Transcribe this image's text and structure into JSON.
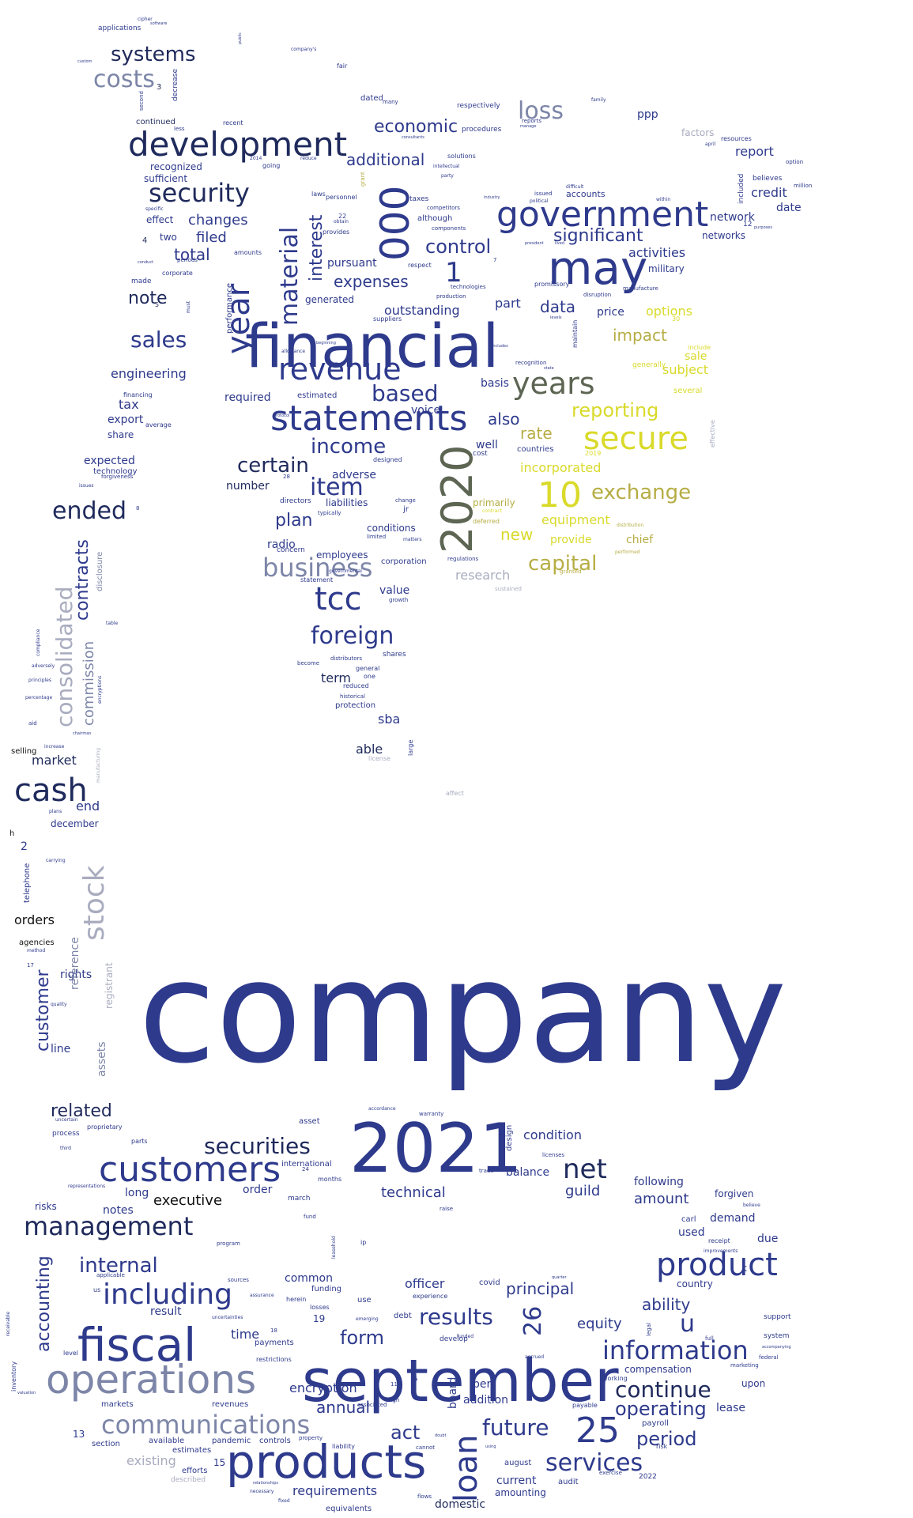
{
  "words": {
    "company": "company",
    "financial": "financial",
    "y2021": "2021",
    "september": "september",
    "government": "government",
    "may": "may",
    "development": "development",
    "statements": "statements",
    "products": "products",
    "operations": "operations",
    "fiscal": "fiscal",
    "customers": "customers",
    "product": "product",
    "revenue": "revenue",
    "y2020": "2020",
    "n000": "000",
    "year": "year",
    "years": "years",
    "secure": "secure",
    "tcc": "tcc",
    "cash": "cash",
    "stock": "stock",
    "loan": "loan",
    "including": "including",
    "management": "management",
    "communications": "communications",
    "information": "information",
    "results": "results",
    "securities": "securities",
    "business": "business",
    "foreign": "foreign",
    "security": "security",
    "sales": "sales",
    "material": "material",
    "consolidated": "consolidated",
    "ended": "ended",
    "costs": "costs",
    "systems": "systems",
    "loss": "loss",
    "n10": "10",
    "n25": "25",
    "n26": "26",
    "exchange": "exchange",
    "reporting": "reporting",
    "capital": "capital",
    "item": "item",
    "based": "based",
    "income": "income",
    "certain": "certain",
    "net": "net",
    "internal": "internal",
    "future": "future",
    "services": "services",
    "continue": "continue",
    "operating": "operating",
    "period": "period",
    "economic": "economic",
    "significant": "significant",
    "control": "control",
    "expenses": "expenses",
    "additional": "additional",
    "interest": "interest",
    "note": "note",
    "total": "total",
    "changes": "changes",
    "filed": "filed",
    "u": "u",
    "form": "form",
    "principal": "principal",
    "act": "act",
    "annual": "annual",
    "accounting": "accounting",
    "customer": "customer",
    "contracts": "contracts",
    "commission": "commission",
    "plan": "plan",
    "impact": "impact",
    "data": "data",
    "also": "also",
    "rate": "rate",
    "new": "new",
    "equipment": "equipment",
    "incorporated": "incorporated",
    "outstanding": "outstanding",
    "options": "options",
    "activities": "activities",
    "related": "related",
    "executive": "executive",
    "equity": "equity",
    "ability": "ability",
    "amount": "amount",
    "technical": "technical",
    "condition": "condition",
    "market": "market",
    "engineering": "engineering",
    "n1": "1",
    "sba": "sba",
    "term": "term",
    "existing": "existing",
    "requirements": "requirements",
    "officer": "officer",
    "guild": "guild",
    "encryption": "encryption",
    "time": "time",
    "notes": "notes",
    "order": "order",
    "long": "long",
    "common": "common",
    "addition": "addition",
    "current": "current",
    "end": "end",
    "december": "december",
    "orders": "orders",
    "rights": "rights",
    "line": "line",
    "assets": "assets",
    "reference": "reference",
    "registrant": "registrant",
    "telephone": "telephone",
    "agencies": "agencies",
    "tax": "tax",
    "export": "export",
    "share": "share",
    "expected": "expected",
    "technology": "technology",
    "required": "required",
    "estimated": "estimated",
    "able": "able",
    "value": "value",
    "radio": "radio",
    "adverse": "adverse",
    "liabilities": "liabilities",
    "conditions": "conditions",
    "employees": "employees",
    "chief": "chief",
    "provide": "provide",
    "primarily": "primarily",
    "research": "research",
    "subject": "subject",
    "sale": "sale",
    "price": "price",
    "part": "part",
    "basis": "basis",
    "well": "well",
    "network": "network",
    "networks": "networks",
    "report": "report",
    "credit": "credit",
    "date": "date",
    "military": "military",
    "ppp": "ppp",
    "factors": "factors",
    "recognized": "recognized",
    "sufficient": "sufficient",
    "effect": "effect",
    "two": "two",
    "pursuant": "pursuant",
    "generated": "generated",
    "voice": "voice",
    "number": "number",
    "international": "international",
    "balance": "balance",
    "following": "following",
    "forgiven": "forgiven",
    "demand": "demand",
    "used": "used",
    "due": "due",
    "country": "country",
    "compensation": "compensation",
    "upon": "upon",
    "lease": "lease",
    "payroll": "payroll",
    "august": "august",
    "audit": "audit",
    "domestic": "domestic",
    "amounting": "amounting",
    "per": "per",
    "board": "board",
    "result": "result",
    "payments": "payments",
    "markets": "markets",
    "revenues": "revenues",
    "pandemic": "pandemic",
    "controls": "controls",
    "efforts": "efforts",
    "estimates": "estimates",
    "section": "section",
    "available": "available",
    "n13": "13",
    "n19": "19",
    "n15": "15",
    "n2": "2",
    "risks": "risks",
    "level": "level",
    "inventory": "inventory",
    "selling": "selling",
    "h": "h",
    "asset": "asset",
    "design": "design",
    "continued": "continued",
    "applications": "applications",
    "decrease": "decrease",
    "dated": "dated",
    "respectively": "respectively",
    "protection": "protection",
    "foreign_small": "distributors",
    "equivalents": "equivalents",
    "covid": "covid",
    "funding": "funding",
    "debt": "debt",
    "k": "k",
    "system": "system",
    "support": "support",
    "financing": "financing",
    "forgiveness": "forgiveness",
    "issues": "issues",
    "average": "average",
    "disclosure": "disclosure",
    "corporation": "corporation",
    "statement": "statement",
    "concern": "concern",
    "directors": "directors",
    "shares": "shares",
    "general": "general",
    "one": "one",
    "reduced": "reduced",
    "historical": "historical",
    "license": "license",
    "large": "large",
    "affect": "affect",
    "countries": "countries",
    "accounts": "accounts",
    "taxes": "taxes",
    "although": "although",
    "competitors": "competitors",
    "components": "components",
    "solutions": "solutions",
    "procedures": "procedures",
    "reports": "reports",
    "resources": "resources",
    "believes": "believes",
    "effective": "effective",
    "several": "several",
    "generally": "generally",
    "include": "include",
    "performance": "performance",
    "amounts": "amounts",
    "corporate": "corporate",
    "made": "made",
    "periods": "periods",
    "conduct": "conduct",
    "recent": "recent",
    "less": "less",
    "going": "going",
    "reduce": "reduce",
    "fair": "fair",
    "personnel": "personnel",
    "provides": "provides",
    "laws": "laws",
    "respect": "respect",
    "technologies": "technologies",
    "production": "production",
    "suppliers": "suppliers",
    "promissory": "promissory",
    "disruption": "disruption",
    "manufacture": "manufacture",
    "included": "included",
    "march": "march",
    "months": "months",
    "herein": "herein",
    "losses": "losses",
    "use": "use",
    "experience": "experience",
    "develop": "develop",
    "raise": "raise",
    "emerging": "emerging",
    "restrictions": "restrictions",
    "associated": "associated",
    "liability": "liability",
    "property": "property",
    "cannot": "cannot",
    "working": "working",
    "payable": "payable",
    "risk": "risk",
    "legal": "legal",
    "full": "full",
    "described": "described",
    "marketing": "marketing",
    "proprietary": "proprietary",
    "process": "process",
    "parts": "parts",
    "aid": "aid",
    "chairman": "chairman",
    "increase": "increase",
    "plans": "plans",
    "percentage": "percentage",
    "compliance": "compliance",
    "principles": "principles",
    "adversely": "adversely",
    "carrying": "carrying",
    "quality": "quality",
    "method": "method",
    "third": "third",
    "uncertain": "uncertain",
    "representations": "representations",
    "manufacturing": "manufacturing",
    "encryptions": "encryptions",
    "n3": "3",
    "n4": "4",
    "n5": "5",
    "n7": "7",
    "n8": "8",
    "n6": "6",
    "n11": "11",
    "n12": "12",
    "n17": "17",
    "n18": "18",
    "n22": "22",
    "n24": "24",
    "n28": "28",
    "n30": "30",
    "n2014": "2014",
    "n2019": "2019",
    "n2022": "2022",
    "jr": "jr",
    "change": "change",
    "deferred": "deferred",
    "contract": "contract",
    "regulations": "regulations",
    "grant": "grant",
    "granted": "granted",
    "sustained": "sustained",
    "distribution": "distribution",
    "performed": "performed",
    "cost": "cost",
    "designed": "designed",
    "limited": "limited",
    "matters": "matters",
    "growth": "growth",
    "become": "become",
    "typically": "typically",
    "governmental": "governmental",
    "maintain": "maintain",
    "specific": "specific",
    "issued": "issued",
    "difficult": "difficult",
    "political": "political",
    "party": "party",
    "consultants": "consultants",
    "many": "many",
    "intellectual": "intellectual",
    "industry": "industry",
    "president": "president",
    "million": "million",
    "option": "option",
    "purposes": "purposes",
    "within": "within",
    "april": "april",
    "family": "family",
    "manage": "manage",
    "must": "must",
    "second": "second",
    "custom": "custom",
    "cipher": "cipher",
    "software": "software",
    "public": "public",
    "company_s": "company's",
    "receipt": "receipt",
    "improvements": "improvements",
    "carl": "carl",
    "ip": "ip",
    "accordance": "accordance",
    "warranty": "warranty",
    "trade": "trade",
    "licenses": "licenses",
    "sources": "sources",
    "assurance": "assurance",
    "program": "program",
    "fund": "fund",
    "leasehold": "leasehold",
    "accrued": "accrued",
    "high": "high",
    "fixed": "fixed",
    "necessary": "necessary",
    "relationships": "relationships",
    "flows": "flows",
    "exercise": "exercise",
    "federal": "federal",
    "believe": "believe",
    "accompanying": "accompanying",
    "receivable": "receivable",
    "valuation": "valuation",
    "fourth": "fourth",
    "uncertainties": "uncertainties",
    "applicable": "applicable",
    "us": "us",
    "include2": "accordingly",
    "recognition": "recognition",
    "state": "state",
    "includes": "includes",
    "levels": "levels",
    "lived": "lived",
    "obtain": "obtain",
    "beginning": "beginning",
    "protocol": "protocol",
    "allowance": "allowance",
    "table": "table",
    "quarter": "quarter",
    "doubt": "doubt",
    "using": "using",
    "funded": "funded"
  }
}
